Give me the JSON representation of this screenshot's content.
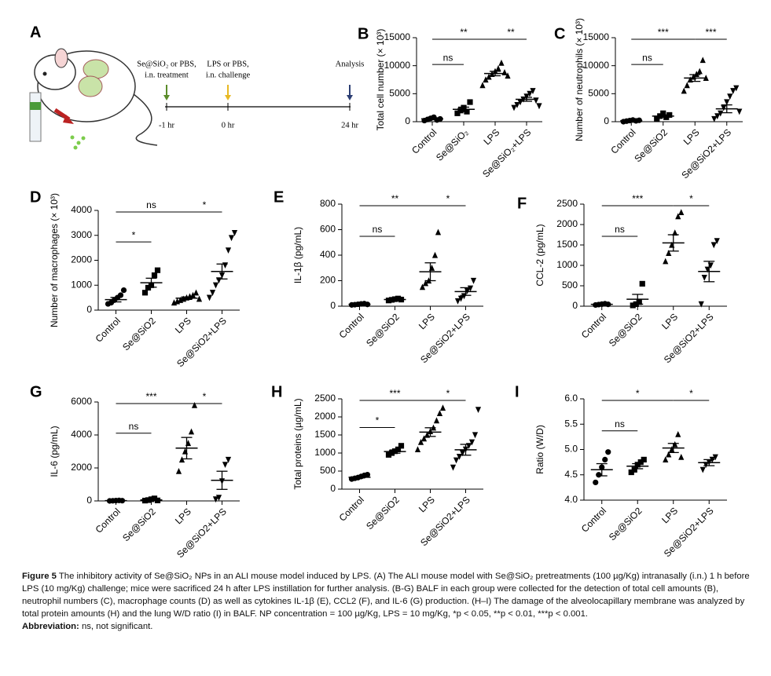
{
  "figure": {
    "label": "A",
    "timeline": {
      "steps": [
        {
          "text": [
            "Se@SiO₂ or PBS,",
            "i.n. treatment"
          ],
          "time": "-1 hr",
          "color": "#5b8c2a"
        },
        {
          "text": [
            "LPS or PBS,",
            "i.n. challenge"
          ],
          "time": "0 hr",
          "color": "#e8b923"
        },
        {
          "text": [
            "Analysis"
          ],
          "time": "24 hr",
          "color": "#2c3e73"
        }
      ]
    }
  },
  "markers": [
    "circle",
    "square",
    "triangle",
    "triangle-down"
  ],
  "chart_data": [
    {
      "type": "dot",
      "label": "B",
      "y_label": "Total cell number (× 10³)",
      "categories": [
        "Control",
        "Se@SiO₂",
        "LPS",
        "Se@SiO₂+LPS"
      ],
      "ylim": [
        0,
        15000
      ],
      "yticks": [
        0,
        5000,
        10000,
        15000
      ],
      "points": [
        [
          200,
          400,
          600,
          800,
          300,
          500
        ],
        [
          1500,
          2000,
          2500,
          1800,
          3500
        ],
        [
          6500,
          7500,
          8000,
          8500,
          9000,
          9500,
          10500,
          8800,
          8200
        ],
        [
          2500,
          3000,
          3500,
          4000,
          4500,
          5000,
          5500,
          3800,
          2800
        ]
      ],
      "means": [
        500,
        2200,
        8600,
        4000
      ],
      "errors": [
        150,
        400,
        400,
        350
      ],
      "comparisons": [
        {
          "from": 0,
          "to": 1,
          "label": "ns"
        },
        {
          "from": 0,
          "to": 2,
          "label": "**"
        },
        {
          "from": 2,
          "to": 3,
          "label": "**"
        }
      ]
    },
    {
      "type": "dot",
      "label": "C",
      "y_label": "Number of neutrophils (× 10³)",
      "categories": [
        "Control",
        "Se@SiO2",
        "LPS",
        "Se@SiO2+LPS"
      ],
      "ylim": [
        0,
        15000
      ],
      "yticks": [
        0,
        5000,
        10000,
        15000
      ],
      "points": [
        [
          0,
          100,
          200,
          300,
          150,
          250
        ],
        [
          500,
          1000,
          1500,
          800,
          1200
        ],
        [
          5500,
          6500,
          7500,
          8000,
          8500,
          9000,
          11000,
          7800
        ],
        [
          500,
          1000,
          1500,
          2500,
          3500,
          4500,
          5500,
          6000,
          1800
        ]
      ],
      "means": [
        200,
        1000,
        7800,
        2300
      ],
      "errors": [
        60,
        200,
        600,
        700
      ],
      "comparisons": [
        {
          "from": 0,
          "to": 1,
          "label": "ns"
        },
        {
          "from": 0,
          "to": 2,
          "label": "***"
        },
        {
          "from": 2,
          "to": 3,
          "label": "***"
        }
      ]
    },
    {
      "type": "dot",
      "label": "D",
      "y_label": "Number of macrophages (× 10³)",
      "categories": [
        "Control",
        "Se@SiO2",
        "LPS",
        "Se@SiO2+LPS"
      ],
      "ylim": [
        0,
        4000
      ],
      "yticks": [
        0,
        1000,
        2000,
        3000,
        4000
      ],
      "points": [
        [
          250,
          300,
          400,
          500,
          600,
          800
        ],
        [
          700,
          900,
          1000,
          1400,
          1600
        ],
        [
          300,
          350,
          400,
          450,
          500,
          550,
          600,
          700,
          450
        ],
        [
          500,
          700,
          1000,
          1200,
          1400,
          1800,
          2400,
          2900,
          3100
        ]
      ],
      "means": [
        420,
        1100,
        480,
        1550
      ],
      "errors": [
        90,
        180,
        50,
        300
      ],
      "comparisons": [
        {
          "from": 0,
          "to": 1,
          "label": "*"
        },
        {
          "from": 0,
          "to": 2,
          "label": "ns"
        },
        {
          "from": 2,
          "to": 3,
          "label": "*"
        }
      ]
    },
    {
      "type": "dot",
      "label": "E",
      "y_label": "IL-1β  (pg/mL)",
      "categories": [
        "Control",
        "Se@SiO2",
        "LPS",
        "Se@SiO2+LPS"
      ],
      "ylim": [
        0,
        800
      ],
      "yticks": [
        0,
        200,
        400,
        600,
        800
      ],
      "points": [
        [
          10,
          12,
          15,
          18,
          20,
          14
        ],
        [
          45,
          50,
          55,
          60,
          52
        ],
        [
          150,
          180,
          200,
          300,
          400,
          580
        ],
        [
          40,
          60,
          80,
          120,
          140,
          200
        ]
      ],
      "means": [
        15,
        52,
        270,
        115
      ],
      "errors": [
        3,
        4,
        70,
        30
      ],
      "comparisons": [
        {
          "from": 0,
          "to": 1,
          "label": "ns"
        },
        {
          "from": 0,
          "to": 2,
          "label": "**"
        },
        {
          "from": 2,
          "to": 3,
          "label": "*"
        }
      ]
    },
    {
      "type": "dot",
      "label": "F",
      "y_label": "CCL-2  (pg/mL)",
      "categories": [
        "Control",
        "Se@SiO2",
        "LPS",
        "Se@SiO2+LPS"
      ],
      "ylim": [
        0,
        2500
      ],
      "yticks": [
        0,
        500,
        1000,
        1500,
        2000,
        2500
      ],
      "points": [
        [
          30,
          40,
          50,
          60,
          45
        ],
        [
          20,
          50,
          100,
          550
        ],
        [
          1100,
          1300,
          1500,
          1800,
          2200,
          2300
        ],
        [
          50,
          700,
          900,
          1000,
          1500,
          1600
        ]
      ],
      "means": [
        45,
        170,
        1550,
        850
      ],
      "errors": [
        5,
        120,
        200,
        250
      ],
      "comparisons": [
        {
          "from": 0,
          "to": 1,
          "label": "ns"
        },
        {
          "from": 0,
          "to": 2,
          "label": "***"
        },
        {
          "from": 2,
          "to": 3,
          "label": "*"
        }
      ]
    },
    {
      "type": "dot",
      "label": "G",
      "y_label": "IL-6  (pg/mL)",
      "categories": [
        "Control",
        "Se@SiO2",
        "LPS",
        "Se@SiO2+LPS"
      ],
      "ylim": [
        0,
        6000
      ],
      "yticks": [
        0,
        2000,
        4000,
        6000
      ],
      "points": [
        [
          0,
          10,
          20,
          30,
          15
        ],
        [
          20,
          50,
          100,
          150,
          30
        ],
        [
          1800,
          2500,
          3000,
          3500,
          4200,
          5800
        ],
        [
          100,
          200,
          1200,
          2200,
          2500
        ]
      ],
      "means": [
        15,
        60,
        3200,
        1250
      ],
      "errors": [
        5,
        20,
        650,
        550
      ],
      "comparisons": [
        {
          "from": 0,
          "to": 1,
          "label": "ns"
        },
        {
          "from": 0,
          "to": 2,
          "label": "***"
        },
        {
          "from": 2,
          "to": 3,
          "label": "*"
        }
      ]
    },
    {
      "type": "dot",
      "label": "H",
      "y_label": "Total proteins (µg/mL)",
      "categories": [
        "Control",
        "Se@SiO2",
        "LPS",
        "Se@SiO2+LPS"
      ],
      "ylim": [
        0,
        2500
      ],
      "yticks": [
        0,
        500,
        1000,
        1500,
        2000,
        2500
      ],
      "points": [
        [
          280,
          300,
          320,
          350,
          380,
          400
        ],
        [
          950,
          1000,
          1050,
          1100,
          1200
        ],
        [
          1100,
          1300,
          1400,
          1500,
          1600,
          1700,
          1900,
          2100,
          2250
        ],
        [
          600,
          800,
          900,
          1000,
          1100,
          1200,
          1300,
          1500,
          2200
        ]
      ],
      "means": [
        330,
        1040,
        1580,
        1090
      ],
      "errors": [
        20,
        45,
        120,
        150
      ],
      "comparisons": [
        {
          "from": 0,
          "to": 1,
          "label": "*"
        },
        {
          "from": 0,
          "to": 2,
          "label": "***"
        },
        {
          "from": 2,
          "to": 3,
          "label": "*"
        }
      ]
    },
    {
      "type": "dot",
      "label": "I",
      "y_label": "Ratio (W/D)",
      "categories": [
        "Control",
        "Se@SiO2",
        "LPS",
        "Se@SiO2+LPS"
      ],
      "ylim": [
        4,
        6
      ],
      "yticks": [
        {
          "value": 4,
          "label": "4.0"
        },
        4.5,
        {
          "value": 5,
          "label": "5.0"
        },
        5.5,
        {
          "value": 6,
          "label": "6.0"
        }
      ],
      "points": [
        [
          4.35,
          4.5,
          4.65,
          4.8,
          4.95
        ],
        [
          4.55,
          4.6,
          4.7,
          4.75,
          4.8
        ],
        [
          4.8,
          4.9,
          5.0,
          5.1,
          5.3,
          4.85
        ],
        [
          4.6,
          4.7,
          4.75,
          4.8,
          4.85
        ]
      ],
      "means": [
        4.6,
        4.67,
        5.03,
        4.74
      ],
      "errors": [
        0.12,
        0.05,
        0.09,
        0.06
      ],
      "comparisons": [
        {
          "from": 0,
          "to": 1,
          "label": "ns"
        },
        {
          "from": 0,
          "to": 2,
          "label": "*"
        },
        {
          "from": 2,
          "to": 3,
          "label": "*"
        }
      ]
    }
  ],
  "caption": {
    "label": "Figure 5",
    "text": "The inhibitory activity of Se@SiO₂ NPs in an ALI mouse model induced by LPS. (A) The ALI mouse model with Se@SiO₂ pretreatments (100 µg/Kg) intranasally (i.n.) 1 h before LPS (10 mg/Kg) challenge; mice were sacrificed 24 h after LPS instillation for further analysis. (B-G) BALF in each group were collected for the detection of total cell amounts (B), neutrophil numbers (C), macrophage counts (D) as well as cytokines IL-1β (E), CCL2 (F), and IL-6 (G) production. (H–I) The damage of the alveolocapillary membrane was analyzed by total protein amounts (H) and the lung W/D ratio (I) in BALF. NP concentration = 100 µg/Kg, LPS = 10 mg/Kg, *p < 0.05, **p < 0.01, ***p < 0.001.",
    "abbreviation_label": "Abbreviation:",
    "abbreviation": "ns, not significant."
  }
}
